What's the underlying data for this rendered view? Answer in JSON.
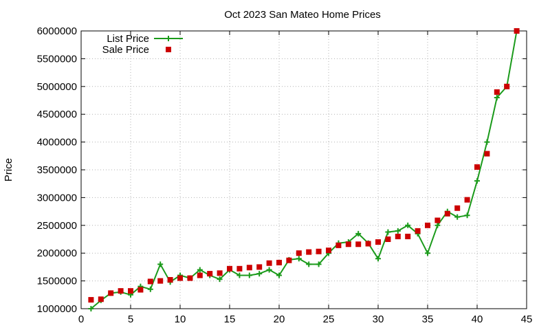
{
  "chart_data": {
    "type": "line",
    "title": "Oct 2023 San Mateo Home Prices",
    "xlabel": "",
    "ylabel": "Price",
    "xlim": [
      0,
      45
    ],
    "ylim": [
      1000000,
      6000000
    ],
    "x_ticks": [
      0,
      5,
      10,
      15,
      20,
      25,
      30,
      35,
      40,
      45
    ],
    "y_ticks": [
      1000000,
      1500000,
      2000000,
      2500000,
      3000000,
      3500000,
      4000000,
      4500000,
      5000000,
      5500000,
      6000000
    ],
    "grid": true,
    "legend_position": "top-left",
    "x": [
      1,
      2,
      3,
      4,
      5,
      6,
      7,
      8,
      9,
      10,
      11,
      12,
      13,
      14,
      15,
      16,
      17,
      18,
      19,
      20,
      21,
      22,
      23,
      24,
      25,
      26,
      27,
      28,
      29,
      30,
      31,
      32,
      33,
      34,
      35,
      36,
      37,
      38,
      39,
      40,
      41,
      42,
      43,
      44
    ],
    "series": [
      {
        "name": "List Price",
        "style": "line-plus",
        "color": "#1a9a1a",
        "values": [
          1000000,
          1150000,
          1280000,
          1300000,
          1250000,
          1400000,
          1350000,
          1800000,
          1480000,
          1600000,
          1550000,
          1700000,
          1600000,
          1530000,
          1700000,
          1600000,
          1600000,
          1630000,
          1700000,
          1600000,
          1880000,
          1900000,
          1800000,
          1800000,
          2000000,
          2180000,
          2200000,
          2350000,
          2180000,
          1900000,
          2380000,
          2400000,
          2500000,
          2350000,
          2000000,
          2500000,
          2750000,
          2650000,
          2680000,
          3300000,
          4000000,
          4800000,
          5000000,
          6000000
        ]
      },
      {
        "name": "Sale Price",
        "style": "square",
        "color": "#cc0000",
        "values": [
          1160000,
          1170000,
          1280000,
          1320000,
          1320000,
          1340000,
          1490000,
          1500000,
          1520000,
          1550000,
          1550000,
          1600000,
          1630000,
          1640000,
          1720000,
          1720000,
          1740000,
          1750000,
          1820000,
          1830000,
          1870000,
          2000000,
          2020000,
          2030000,
          2050000,
          2140000,
          2160000,
          2160000,
          2170000,
          2200000,
          2250000,
          2300000,
          2300000,
          2400000,
          2500000,
          2590000,
          2710000,
          2810000,
          2960000,
          3550000,
          3790000,
          4900000,
          5000000,
          6000000
        ]
      }
    ]
  }
}
